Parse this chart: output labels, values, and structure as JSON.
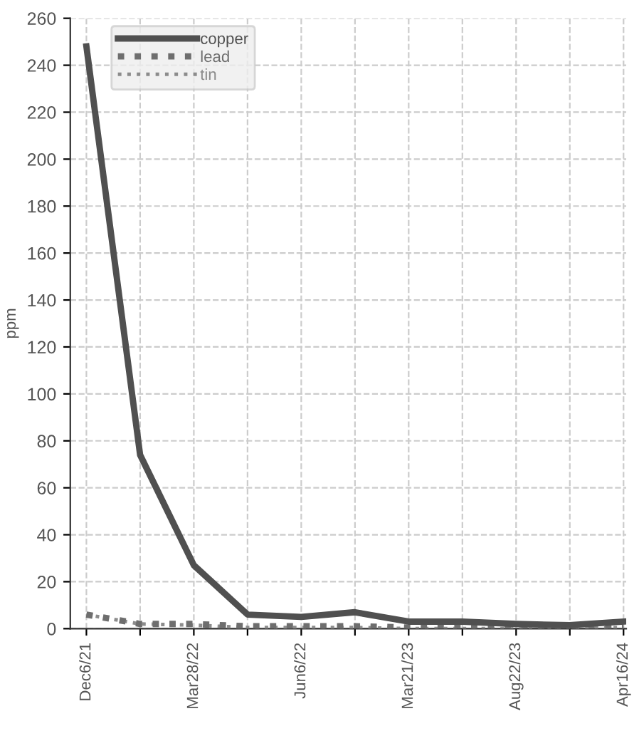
{
  "chart_data": {
    "type": "line",
    "ylabel": "ppm",
    "categories": [
      "Dec6/21",
      null,
      "Mar28/22",
      null,
      "Jun6/22",
      null,
      "Mar21/23",
      null,
      "Aug22/23",
      null,
      "Apr16/24"
    ],
    "series": [
      {
        "name": "copper",
        "color": "#505050",
        "line_style": "solid",
        "values": [
          248,
          74,
          27,
          6,
          5,
          7,
          3,
          3,
          2,
          1.5,
          3
        ]
      },
      {
        "name": "lead",
        "color": "#6e6e6e",
        "line_style": "dotted",
        "values": [
          6,
          2,
          2,
          1,
          1,
          1,
          0.5,
          0.5,
          0.5,
          0.5,
          1
        ]
      },
      {
        "name": "tin",
        "color": "#8c8c8c",
        "line_style": "dotted",
        "values": [
          6,
          2,
          1.5,
          0.5,
          0.5,
          0.5,
          0,
          0,
          0,
          0,
          0.5
        ]
      }
    ],
    "ylim": [
      0,
      260
    ],
    "yticks": [
      0,
      20,
      40,
      60,
      80,
      100,
      120,
      140,
      160,
      180,
      200,
      220,
      240,
      260
    ],
    "grid": true,
    "legend": "top left",
    "marker": "none"
  }
}
